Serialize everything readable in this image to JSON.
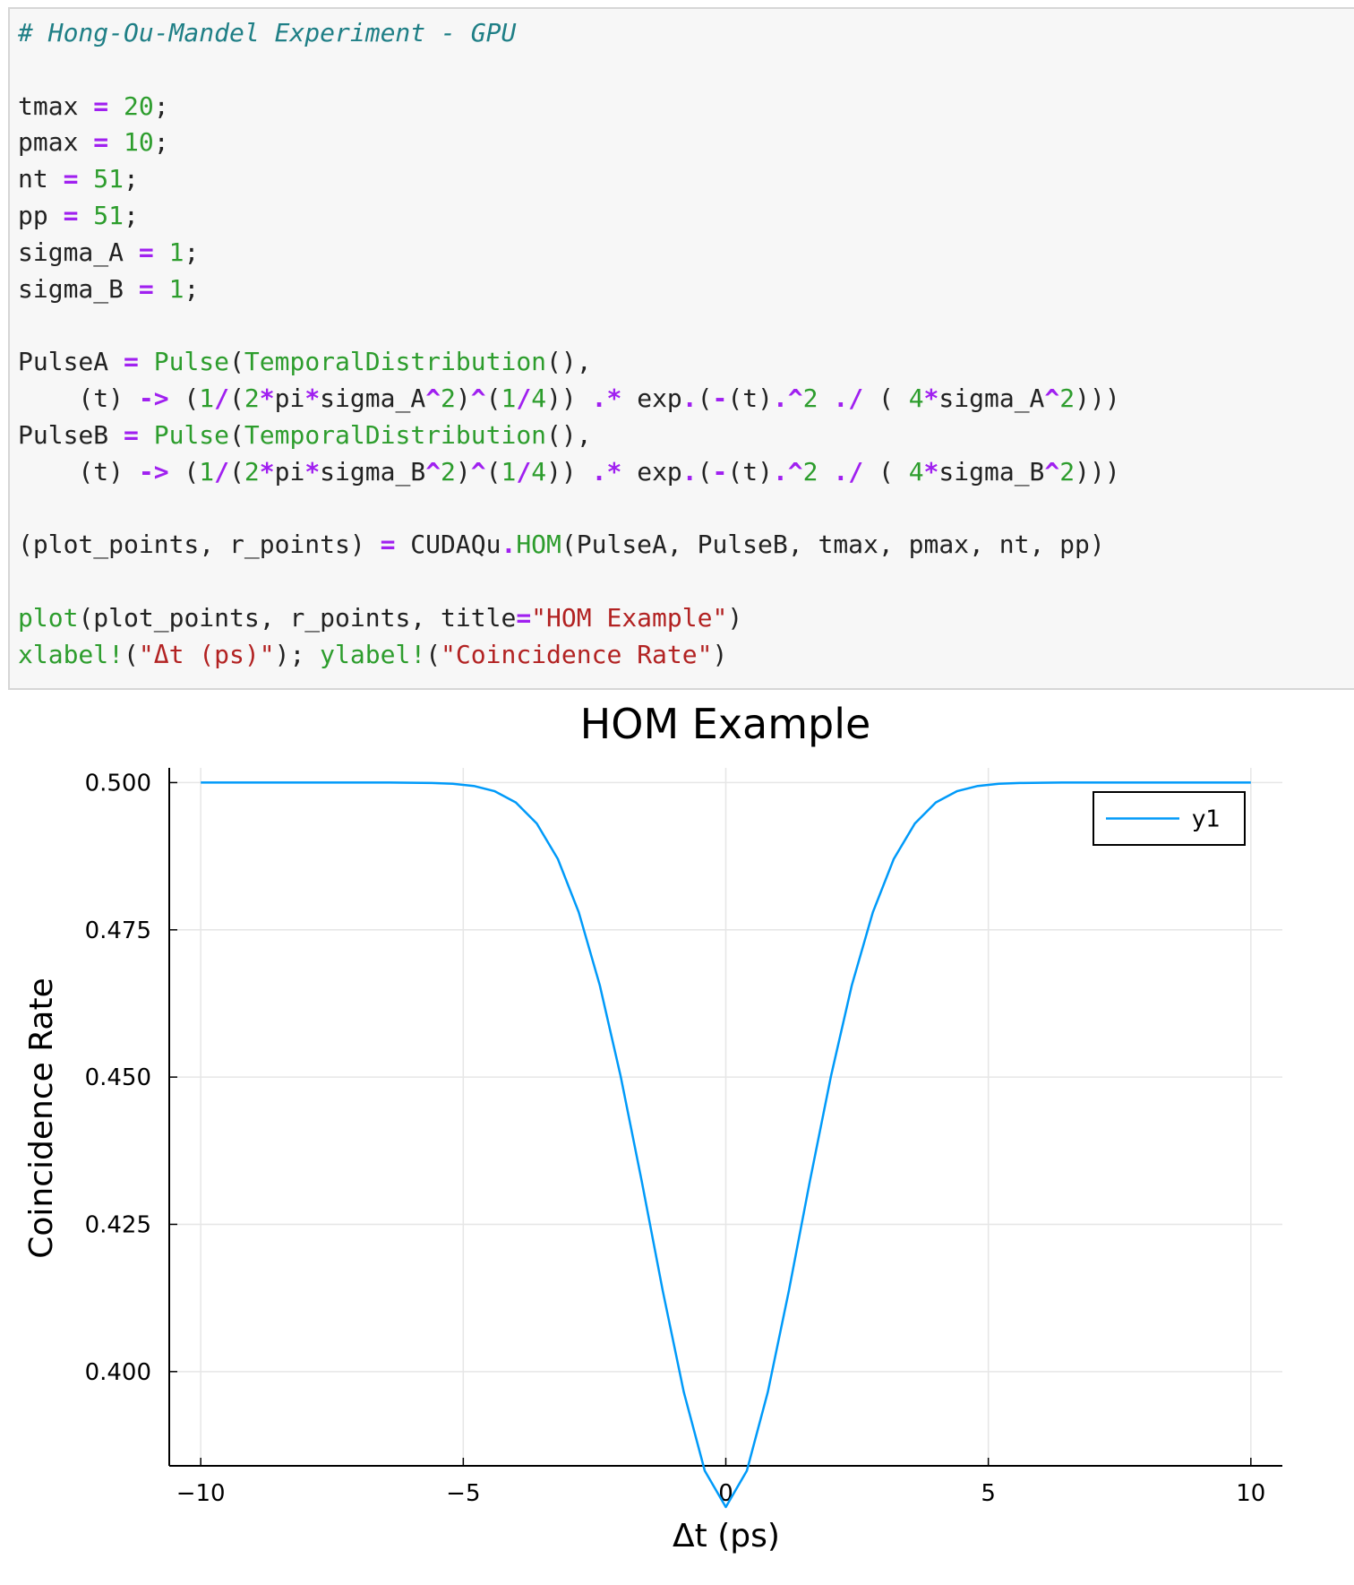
{
  "code": {
    "lines": [
      [
        {
          "c": "cm",
          "t": "# Hong-Ou-Mandel Experiment - GPU"
        }
      ],
      [],
      [
        {
          "c": "txt",
          "t": "tmax "
        },
        {
          "c": "op",
          "t": "="
        },
        {
          "c": "txt",
          "t": " "
        },
        {
          "c": "num",
          "t": "20"
        },
        {
          "c": "txt",
          "t": ";"
        }
      ],
      [
        {
          "c": "txt",
          "t": "pmax "
        },
        {
          "c": "op",
          "t": "="
        },
        {
          "c": "txt",
          "t": " "
        },
        {
          "c": "num",
          "t": "10"
        },
        {
          "c": "txt",
          "t": ";"
        }
      ],
      [
        {
          "c": "txt",
          "t": "nt "
        },
        {
          "c": "op",
          "t": "="
        },
        {
          "c": "txt",
          "t": " "
        },
        {
          "c": "num",
          "t": "51"
        },
        {
          "c": "txt",
          "t": ";"
        }
      ],
      [
        {
          "c": "txt",
          "t": "pp "
        },
        {
          "c": "op",
          "t": "="
        },
        {
          "c": "txt",
          "t": " "
        },
        {
          "c": "num",
          "t": "51"
        },
        {
          "c": "txt",
          "t": ";"
        }
      ],
      [
        {
          "c": "txt",
          "t": "sigma_A "
        },
        {
          "c": "op",
          "t": "="
        },
        {
          "c": "txt",
          "t": " "
        },
        {
          "c": "num",
          "t": "1"
        },
        {
          "c": "txt",
          "t": ";"
        }
      ],
      [
        {
          "c": "txt",
          "t": "sigma_B "
        },
        {
          "c": "op",
          "t": "="
        },
        {
          "c": "txt",
          "t": " "
        },
        {
          "c": "num",
          "t": "1"
        },
        {
          "c": "txt",
          "t": ";"
        }
      ],
      [],
      [
        {
          "c": "txt",
          "t": "PulseA "
        },
        {
          "c": "op",
          "t": "="
        },
        {
          "c": "txt",
          "t": " "
        },
        {
          "c": "fn",
          "t": "Pulse"
        },
        {
          "c": "txt",
          "t": "("
        },
        {
          "c": "fn",
          "t": "TemporalDistribution"
        },
        {
          "c": "txt",
          "t": "(),"
        }
      ],
      [
        {
          "c": "txt",
          "t": "    (t) "
        },
        {
          "c": "op",
          "t": "->"
        },
        {
          "c": "txt",
          "t": " ("
        },
        {
          "c": "num",
          "t": "1"
        },
        {
          "c": "op",
          "t": "/"
        },
        {
          "c": "txt",
          "t": "("
        },
        {
          "c": "num",
          "t": "2"
        },
        {
          "c": "op",
          "t": "*"
        },
        {
          "c": "txt",
          "t": "pi"
        },
        {
          "c": "op",
          "t": "*"
        },
        {
          "c": "txt",
          "t": "sigma_A"
        },
        {
          "c": "op",
          "t": "^"
        },
        {
          "c": "num",
          "t": "2"
        },
        {
          "c": "txt",
          "t": ")"
        },
        {
          "c": "op",
          "t": "^"
        },
        {
          "c": "txt",
          "t": "("
        },
        {
          "c": "num",
          "t": "1"
        },
        {
          "c": "op",
          "t": "/"
        },
        {
          "c": "num",
          "t": "4"
        },
        {
          "c": "txt",
          "t": ")) "
        },
        {
          "c": "op",
          "t": ".*"
        },
        {
          "c": "txt",
          "t": " exp"
        },
        {
          "c": "op",
          "t": "."
        },
        {
          "c": "txt",
          "t": "("
        },
        {
          "c": "op",
          "t": "-"
        },
        {
          "c": "txt",
          "t": "(t)"
        },
        {
          "c": "op",
          "t": ".^"
        },
        {
          "c": "num",
          "t": "2"
        },
        {
          "c": "txt",
          "t": " "
        },
        {
          "c": "op",
          "t": "./"
        },
        {
          "c": "txt",
          "t": " ( "
        },
        {
          "c": "num",
          "t": "4"
        },
        {
          "c": "op",
          "t": "*"
        },
        {
          "c": "txt",
          "t": "sigma_A"
        },
        {
          "c": "op",
          "t": "^"
        },
        {
          "c": "num",
          "t": "2"
        },
        {
          "c": "txt",
          "t": ")))"
        }
      ],
      [
        {
          "c": "txt",
          "t": "PulseB "
        },
        {
          "c": "op",
          "t": "="
        },
        {
          "c": "txt",
          "t": " "
        },
        {
          "c": "fn",
          "t": "Pulse"
        },
        {
          "c": "txt",
          "t": "("
        },
        {
          "c": "fn",
          "t": "TemporalDistribution"
        },
        {
          "c": "txt",
          "t": "(),"
        }
      ],
      [
        {
          "c": "txt",
          "t": "    (t) "
        },
        {
          "c": "op",
          "t": "->"
        },
        {
          "c": "txt",
          "t": " ("
        },
        {
          "c": "num",
          "t": "1"
        },
        {
          "c": "op",
          "t": "/"
        },
        {
          "c": "txt",
          "t": "("
        },
        {
          "c": "num",
          "t": "2"
        },
        {
          "c": "op",
          "t": "*"
        },
        {
          "c": "txt",
          "t": "pi"
        },
        {
          "c": "op",
          "t": "*"
        },
        {
          "c": "txt",
          "t": "sigma_B"
        },
        {
          "c": "op",
          "t": "^"
        },
        {
          "c": "num",
          "t": "2"
        },
        {
          "c": "txt",
          "t": ")"
        },
        {
          "c": "op",
          "t": "^"
        },
        {
          "c": "txt",
          "t": "("
        },
        {
          "c": "num",
          "t": "1"
        },
        {
          "c": "op",
          "t": "/"
        },
        {
          "c": "num",
          "t": "4"
        },
        {
          "c": "txt",
          "t": ")) "
        },
        {
          "c": "op",
          "t": ".*"
        },
        {
          "c": "txt",
          "t": " exp"
        },
        {
          "c": "op",
          "t": "."
        },
        {
          "c": "txt",
          "t": "("
        },
        {
          "c": "op",
          "t": "-"
        },
        {
          "c": "txt",
          "t": "(t)"
        },
        {
          "c": "op",
          "t": ".^"
        },
        {
          "c": "num",
          "t": "2"
        },
        {
          "c": "txt",
          "t": " "
        },
        {
          "c": "op",
          "t": "./"
        },
        {
          "c": "txt",
          "t": " ( "
        },
        {
          "c": "num",
          "t": "4"
        },
        {
          "c": "op",
          "t": "*"
        },
        {
          "c": "txt",
          "t": "sigma_B"
        },
        {
          "c": "op",
          "t": "^"
        },
        {
          "c": "num",
          "t": "2"
        },
        {
          "c": "txt",
          "t": ")))"
        }
      ],
      [],
      [
        {
          "c": "txt",
          "t": "(plot_points, r_points) "
        },
        {
          "c": "op",
          "t": "="
        },
        {
          "c": "txt",
          "t": " CUDAQu"
        },
        {
          "c": "op",
          "t": "."
        },
        {
          "c": "fn",
          "t": "HOM"
        },
        {
          "c": "txt",
          "t": "(PulseA, PulseB, tmax, pmax, nt, pp)"
        }
      ],
      [],
      [
        {
          "c": "fn",
          "t": "plot"
        },
        {
          "c": "txt",
          "t": "(plot_points, r_points, title"
        },
        {
          "c": "op",
          "t": "="
        },
        {
          "c": "str",
          "t": "\"HOM Example\""
        },
        {
          "c": "txt",
          "t": ")"
        }
      ],
      [
        {
          "c": "fn",
          "t": "xlabel!"
        },
        {
          "c": "txt",
          "t": "("
        },
        {
          "c": "str",
          "t": "\"Δt (ps)\""
        },
        {
          "c": "txt",
          "t": "); "
        },
        {
          "c": "fn",
          "t": "ylabel!"
        },
        {
          "c": "txt",
          "t": "("
        },
        {
          "c": "str",
          "t": "\"Coincidence Rate\""
        },
        {
          "c": "txt",
          "t": ")"
        }
      ]
    ]
  },
  "chart_data": {
    "type": "line",
    "title": "HOM Example",
    "xlabel": "Δt (ps)",
    "ylabel": "Coincidence Rate",
    "xlim": [
      -10.6,
      10.6
    ],
    "ylim": [
      0.384,
      0.5025
    ],
    "xticks": [
      -10,
      -5,
      0,
      5,
      10
    ],
    "xtick_labels": [
      "−10",
      "−5",
      "0",
      "5",
      "10"
    ],
    "yticks": [
      0.4,
      0.425,
      0.45,
      0.475,
      0.5
    ],
    "ytick_labels": [
      "0.400",
      "0.425",
      "0.450",
      "0.475",
      "0.500"
    ],
    "grid": true,
    "legend_position": "top-right",
    "series": [
      {
        "name": "y1",
        "color": "#009af9",
        "x": [
          -10.0,
          -9.6,
          -9.2,
          -8.8,
          -8.4,
          -8.0,
          -7.6,
          -7.2,
          -6.8,
          -6.4,
          -6.0,
          -5.6,
          -5.2,
          -4.8,
          -4.4,
          -4.0,
          -3.6,
          -3.2,
          -2.8,
          -2.4,
          -2.0,
          -1.6,
          -1.2,
          -0.8,
          -0.4,
          0.0,
          0.4,
          0.8,
          1.2,
          1.6,
          2.0,
          2.4,
          2.8,
          3.2,
          3.6,
          4.0,
          4.4,
          4.8,
          5.2,
          5.6,
          6.0,
          6.4,
          6.8,
          7.2,
          7.6,
          8.0,
          8.4,
          8.8,
          9.2,
          9.6,
          10.0
        ],
        "y": [
          0.5,
          0.5,
          0.5,
          0.5,
          0.5,
          0.5,
          0.5,
          0.5,
          0.5,
          0.5,
          0.49998,
          0.49993,
          0.49979,
          0.49942,
          0.49853,
          0.49663,
          0.49305,
          0.48705,
          0.47798,
          0.46558,
          0.45006,
          0.43226,
          0.41371,
          0.39652,
          0.38316,
          0.377,
          0.38316,
          0.39652,
          0.41371,
          0.43226,
          0.45006,
          0.46558,
          0.47798,
          0.48705,
          0.49305,
          0.49663,
          0.49853,
          0.49942,
          0.49979,
          0.49993,
          0.49998,
          0.5,
          0.5,
          0.5,
          0.5,
          0.5,
          0.5,
          0.5,
          0.5,
          0.5,
          0.5
        ]
      }
    ]
  }
}
